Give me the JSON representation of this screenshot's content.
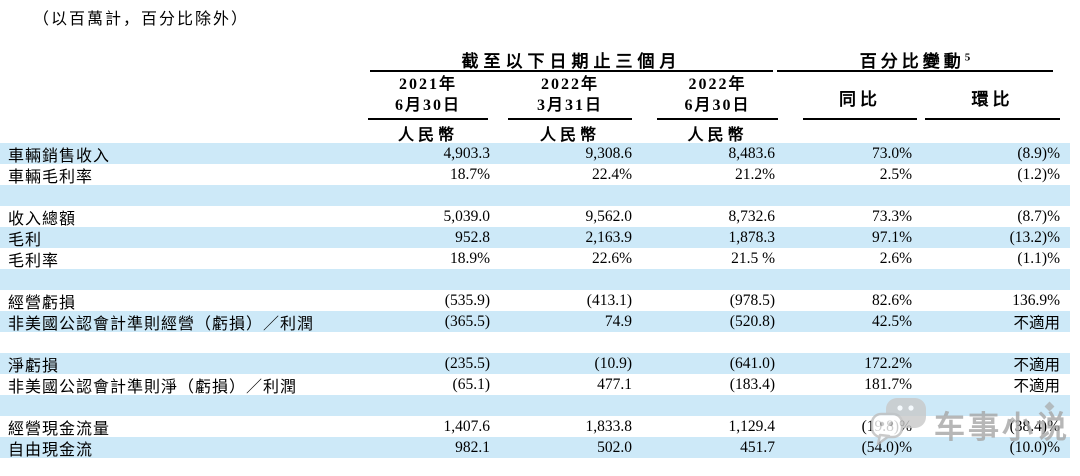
{
  "note": "（以百萬計，百分比除外）",
  "header": {
    "period_group": "截至以下日期止三個月",
    "pct_group": "百分比變動",
    "pct_group_sup": "5",
    "col1_line1": "2021年",
    "col1_line2": "6月30日",
    "col2_line1": "2022年",
    "col2_line2": "3月31日",
    "col3_line1": "2022年",
    "col3_line2": "6月30日",
    "currency": "人民幣",
    "yoy_label": "同比",
    "qoq_label": "環比"
  },
  "table": {
    "rows": [
      {
        "label": "車輛銷售收入",
        "c1": "4,903.3",
        "c2": "9,308.6",
        "c3": "8,483.6",
        "yoy": "73.0%",
        "qoq": "(8.9)%",
        "highlight": true,
        "blank": false
      },
      {
        "label": "車輛毛利率",
        "c1": "18.7%",
        "c2": "22.4%",
        "c3": "21.2%",
        "yoy": "2.5%",
        "qoq": "(1.2)%",
        "highlight": false,
        "blank": false
      },
      {
        "blank": true,
        "highlight": true
      },
      {
        "label": "收入總額",
        "c1": "5,039.0",
        "c2": "9,562.0",
        "c3": "8,732.6",
        "yoy": "73.3%",
        "qoq": "(8.7)%",
        "highlight": false,
        "blank": false
      },
      {
        "label": "毛利",
        "c1": "952.8",
        "c2": "2,163.9",
        "c3": "1,878.3",
        "yoy": "97.1%",
        "qoq": "(13.2)%",
        "highlight": true,
        "blank": false
      },
      {
        "label": "毛利率",
        "c1": "18.9%",
        "c2": "22.6%",
        "c3": "21.5 %",
        "yoy": "2.6%",
        "qoq": "(1.1)%",
        "highlight": false,
        "blank": false
      },
      {
        "blank": true,
        "highlight": true
      },
      {
        "label": "經營虧損",
        "c1": "(535.9)",
        "c2": "(413.1)",
        "c3": "(978.5)",
        "yoy": "82.6%",
        "qoq": "136.9%",
        "highlight": false,
        "blank": false
      },
      {
        "label": "非美國公認會計準則經營（虧損）／利潤",
        "c1": "(365.5)",
        "c2": "74.9",
        "c3": "(520.8)",
        "yoy": "42.5%",
        "qoq": "不適用",
        "highlight": true,
        "blank": false
      },
      {
        "blank": true,
        "highlight": false
      },
      {
        "label": "淨虧損",
        "c1": "(235.5)",
        "c2": "(10.9)",
        "c3": "(641.0)",
        "yoy": "172.2%",
        "qoq": "不適用",
        "highlight": true,
        "blank": false
      },
      {
        "label": "非美國公認會計準則淨（虧損）／利潤",
        "c1": "(65.1)",
        "c2": "477.1",
        "c3": "(183.4)",
        "yoy": "181.7%",
        "qoq": "不適用",
        "highlight": false,
        "blank": false
      },
      {
        "blank": true,
        "highlight": true
      },
      {
        "label": "經營現金流量",
        "c1": "1,407.6",
        "c2": "1,833.8",
        "c3": "1,129.4",
        "yoy": "(19.8)%",
        "qoq": "(38.4)%",
        "highlight": false,
        "blank": false
      },
      {
        "label": "自由現金流",
        "c1": "982.1",
        "c2": "502.0",
        "c3": "451.7",
        "yoy": "(54.0)%",
        "qoq": "(10.0)%",
        "highlight": true,
        "blank": false
      }
    ]
  },
  "watermark": {
    "icon": "chat-bubbles-icon",
    "text": "车事小说"
  },
  "colors": {
    "row_highlight": "#cde9f8",
    "text": "#000000",
    "watermark": "#a6a6a6"
  }
}
